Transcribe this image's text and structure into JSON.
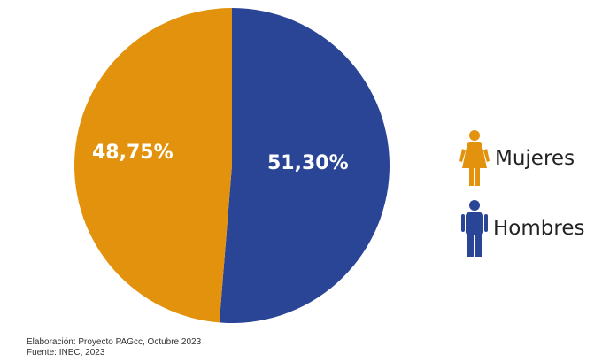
{
  "chart_data": {
    "type": "pie",
    "categories": [
      "Mujeres",
      "Hombres"
    ],
    "values": [
      48.75,
      51.3
    ],
    "value_labels": [
      "48,75%",
      "51,30%"
    ],
    "colors": [
      "#e2920d",
      "#2a4496"
    ],
    "legend_placement": "right",
    "title": "",
    "xlabel": "",
    "ylabel": ""
  },
  "legend": [
    {
      "label": "Mujeres",
      "icon": "woman-icon",
      "color": "#e2920d"
    },
    {
      "label": "Hombres",
      "icon": "man-icon",
      "color": "#2a4496"
    }
  ],
  "footer": {
    "line1": "Elaboración: Proyecto PAGcc, Octubre 2023",
    "line2": "Fuente: INEC, 2023"
  }
}
